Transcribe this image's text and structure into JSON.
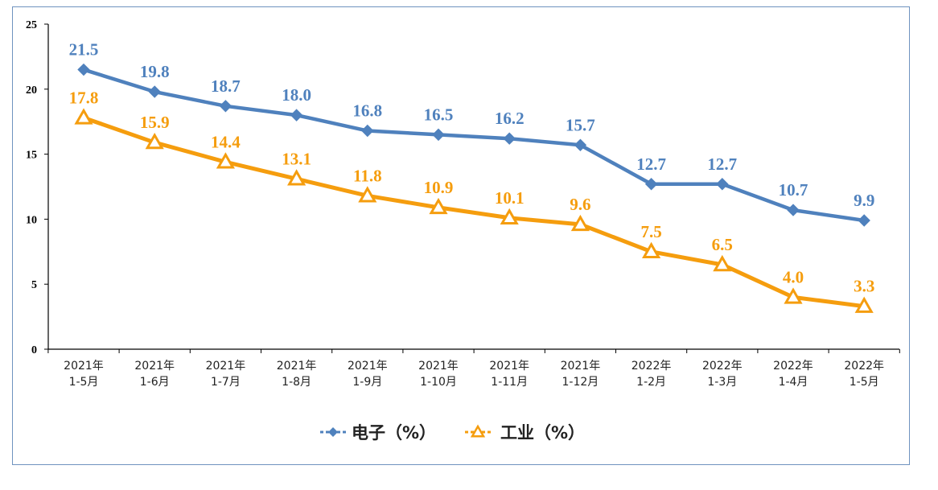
{
  "chart_data": {
    "type": "line",
    "categories": [
      [
        "2021年",
        "1-5月"
      ],
      [
        "2021年",
        "1-6月"
      ],
      [
        "2021年",
        "1-7月"
      ],
      [
        "2021年",
        "1-8月"
      ],
      [
        "2021年",
        "1-9月"
      ],
      [
        "2021年",
        "1-10月"
      ],
      [
        "2021年",
        "1-11月"
      ],
      [
        "2021年",
        "1-12月"
      ],
      [
        "2022年",
        "1-2月"
      ],
      [
        "2022年",
        "1-3月"
      ],
      [
        "2022年",
        "1-4月"
      ],
      [
        "2022年",
        "1-5月"
      ]
    ],
    "series": [
      {
        "name": "电子（%）",
        "marker": "diamond",
        "color": "#4f81bd",
        "values": [
          21.5,
          19.8,
          18.7,
          18.0,
          16.8,
          16.5,
          16.2,
          15.7,
          12.7,
          12.7,
          10.7,
          9.9
        ],
        "labels": [
          "21.5",
          "19.8",
          "18.7",
          "18.0",
          "16.8",
          "16.5",
          "16.2",
          "15.7",
          "12.7",
          "12.7",
          "10.7",
          "9.9"
        ]
      },
      {
        "name": "工业（%）",
        "marker": "triangle",
        "color": "#f59d0e",
        "values": [
          17.8,
          15.9,
          14.4,
          13.1,
          11.8,
          10.9,
          10.1,
          9.6,
          7.5,
          6.5,
          4.0,
          3.3
        ],
        "labels": [
          "17.8",
          "15.9",
          "14.4",
          "13.1",
          "11.8",
          "10.9",
          "10.1",
          "9.6",
          "7.5",
          "6.5",
          "4.0",
          "3.3"
        ]
      }
    ],
    "yticks": [
      "0",
      "5",
      "10",
      "15",
      "20",
      "25"
    ],
    "ylim": [
      0,
      25
    ],
    "legend_position": "bottom",
    "grid": false
  }
}
